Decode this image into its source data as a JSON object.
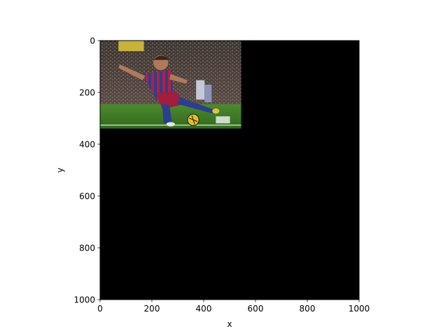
{
  "chart_data": {
    "type": "image",
    "title": "",
    "xlabel": "x",
    "ylabel": "y",
    "xlim": [
      0,
      1000
    ],
    "ylim": [
      1000,
      0
    ],
    "xticks": [
      0,
      200,
      400,
      600,
      800,
      1000
    ],
    "yticks": [
      0,
      200,
      400,
      600,
      800,
      1000
    ],
    "y_inverted": true,
    "grid": false,
    "background_color": "#000000",
    "photo": {
      "description": "soccer player in red and blue striped kit kicking a yellow ball on grass, crowd in background",
      "extent_x": [
        0,
        545
      ],
      "extent_y": [
        0,
        340
      ]
    }
  }
}
